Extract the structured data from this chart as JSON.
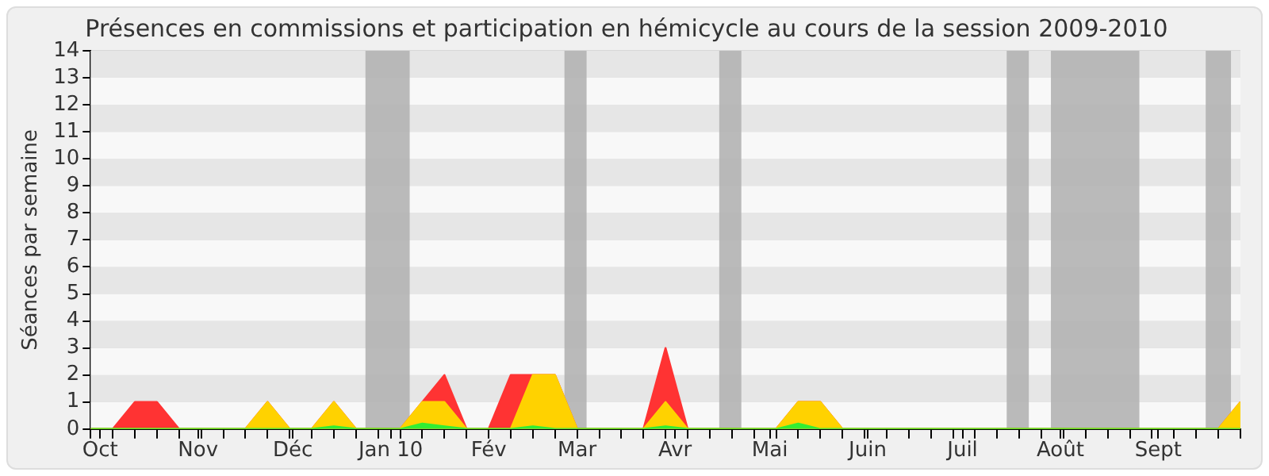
{
  "chart_data": {
    "type": "area",
    "title": "Présences en commissions et participation en hémicycle au cours de la session 2009-2010",
    "ylabel": "Séances par semaine",
    "x": [
      "2009-09-28",
      "2009-10-05",
      "2009-10-12",
      "2009-10-19",
      "2009-10-26",
      "2009-11-02",
      "2009-11-09",
      "2009-11-16",
      "2009-11-23",
      "2009-11-30",
      "2009-12-07",
      "2009-12-14",
      "2009-12-21",
      "2009-12-28",
      "2010-01-04",
      "2010-01-11",
      "2010-01-18",
      "2010-01-25",
      "2010-02-01",
      "2010-02-08",
      "2010-02-15",
      "2010-02-22",
      "2010-03-01",
      "2010-03-08",
      "2010-03-15",
      "2010-03-22",
      "2010-03-29",
      "2010-04-05",
      "2010-04-12",
      "2010-04-19",
      "2010-04-26",
      "2010-05-03",
      "2010-05-10",
      "2010-05-17",
      "2010-05-24",
      "2010-05-31",
      "2010-06-07",
      "2010-06-14",
      "2010-06-21",
      "2010-06-28",
      "2010-07-05",
      "2010-07-12",
      "2010-07-19",
      "2010-07-26",
      "2010-08-02",
      "2010-08-09",
      "2010-08-16",
      "2010-08-23",
      "2010-08-30",
      "2010-09-06",
      "2010-09-13",
      "2010-09-20",
      "2010-09-27"
    ],
    "series": [
      {
        "color": "#ff3333",
        "values": [
          0,
          0,
          1,
          1,
          0,
          0,
          0,
          0,
          1,
          0,
          0,
          1,
          0,
          0,
          0,
          1,
          2,
          0,
          0,
          2,
          2,
          2,
          0,
          0,
          0,
          0,
          3,
          0,
          0,
          0,
          0,
          0,
          1,
          1,
          0,
          0,
          0,
          0,
          0,
          0,
          0,
          0,
          0,
          0,
          0,
          0,
          0,
          0,
          0,
          0,
          0,
          0,
          1
        ]
      },
      {
        "color": "#ffd200",
        "values": [
          0,
          0,
          0,
          0,
          0,
          0,
          0,
          0,
          1,
          0,
          0,
          1,
          0,
          0,
          0,
          1,
          1,
          0,
          0,
          0,
          2,
          2,
          0,
          0,
          0,
          0,
          1,
          0,
          0,
          0,
          0,
          0,
          1,
          1,
          0,
          0,
          0,
          0,
          0,
          0,
          0,
          0,
          0,
          0,
          0,
          0,
          0,
          0,
          0,
          0,
          0,
          0,
          1
        ]
      },
      {
        "color": "#33ee33",
        "values": [
          0,
          0,
          0,
          0,
          0,
          0,
          0,
          0,
          0,
          0,
          0,
          0.1,
          0,
          0,
          0,
          0.2,
          0.1,
          0,
          0,
          0,
          0.1,
          0,
          0,
          0,
          0,
          0,
          0.1,
          0,
          0,
          0,
          0,
          0,
          0.2,
          0,
          0,
          0,
          0,
          0,
          0,
          0,
          0,
          0,
          0,
          0,
          0,
          0,
          0,
          0,
          0,
          0,
          0,
          0,
          0
        ]
      }
    ],
    "xlim": [
      "2009-09-28",
      "2010-09-27"
    ],
    "xticks": [
      {
        "value": "2009-09-28",
        "label": null
      },
      {
        "value": "2009-10-01",
        "label": "Oct"
      },
      {
        "value": "2009-10-05",
        "label": null
      },
      {
        "value": "2009-10-12",
        "label": null
      },
      {
        "value": "2009-10-19",
        "label": null
      },
      {
        "value": "2009-10-26",
        "label": null
      },
      {
        "value": "2009-11-01",
        "label": "Nov"
      },
      {
        "value": "2009-11-02",
        "label": null
      },
      {
        "value": "2009-11-09",
        "label": null
      },
      {
        "value": "2009-11-16",
        "label": null
      },
      {
        "value": "2009-11-23",
        "label": null
      },
      {
        "value": "2009-11-30",
        "label": null
      },
      {
        "value": "2009-12-01",
        "label": "Déc"
      },
      {
        "value": "2009-12-07",
        "label": null
      },
      {
        "value": "2009-12-14",
        "label": null
      },
      {
        "value": "2009-12-21",
        "label": null
      },
      {
        "value": "2009-12-28",
        "label": null
      },
      {
        "value": "2010-01-01",
        "label": "Jan 10"
      },
      {
        "value": "2010-01-04",
        "label": null
      },
      {
        "value": "2010-01-11",
        "label": null
      },
      {
        "value": "2010-01-18",
        "label": null
      },
      {
        "value": "2010-01-25",
        "label": null
      },
      {
        "value": "2010-02-01",
        "label": "Fév"
      },
      {
        "value": "2010-02-08",
        "label": null
      },
      {
        "value": "2010-02-15",
        "label": null
      },
      {
        "value": "2010-02-22",
        "label": null
      },
      {
        "value": "2010-03-01",
        "label": "Mar"
      },
      {
        "value": "2010-03-08",
        "label": null
      },
      {
        "value": "2010-03-15",
        "label": null
      },
      {
        "value": "2010-03-22",
        "label": null
      },
      {
        "value": "2010-03-29",
        "label": null
      },
      {
        "value": "2010-04-01",
        "label": "Avr"
      },
      {
        "value": "2010-04-05",
        "label": null
      },
      {
        "value": "2010-04-12",
        "label": null
      },
      {
        "value": "2010-04-19",
        "label": null
      },
      {
        "value": "2010-04-26",
        "label": null
      },
      {
        "value": "2010-05-01",
        "label": "Mai"
      },
      {
        "value": "2010-05-03",
        "label": null
      },
      {
        "value": "2010-05-10",
        "label": null
      },
      {
        "value": "2010-05-17",
        "label": null
      },
      {
        "value": "2010-05-24",
        "label": null
      },
      {
        "value": "2010-05-31",
        "label": null
      },
      {
        "value": "2010-06-01",
        "label": "Juin"
      },
      {
        "value": "2010-06-07",
        "label": null
      },
      {
        "value": "2010-06-14",
        "label": null
      },
      {
        "value": "2010-06-21",
        "label": null
      },
      {
        "value": "2010-06-28",
        "label": null
      },
      {
        "value": "2010-07-01",
        "label": "Juil"
      },
      {
        "value": "2010-07-05",
        "label": null
      },
      {
        "value": "2010-07-12",
        "label": null
      },
      {
        "value": "2010-07-19",
        "label": null
      },
      {
        "value": "2010-07-26",
        "label": null
      },
      {
        "value": "2010-08-01",
        "label": "Août"
      },
      {
        "value": "2010-08-02",
        "label": null
      },
      {
        "value": "2010-08-09",
        "label": null
      },
      {
        "value": "2010-08-16",
        "label": null
      },
      {
        "value": "2010-08-23",
        "label": null
      },
      {
        "value": "2010-08-30",
        "label": null
      },
      {
        "value": "2010-09-01",
        "label": "Sept"
      },
      {
        "value": "2010-09-06",
        "label": null
      },
      {
        "value": "2010-09-13",
        "label": null
      },
      {
        "value": "2010-09-20",
        "label": null
      },
      {
        "value": "2010-09-27",
        "label": null
      }
    ],
    "ylim": [
      0,
      14
    ],
    "yticks": [
      0,
      1,
      2,
      3,
      4,
      5,
      6,
      7,
      8,
      9,
      10,
      11,
      12,
      13,
      14
    ],
    "bands": [
      {
        "axis": "x",
        "from": "2009-12-24",
        "to": "2010-01-07",
        "color": "#b0b0b0"
      },
      {
        "axis": "x",
        "from": "2010-02-25",
        "to": "2010-03-04",
        "color": "#b0b0b0"
      },
      {
        "axis": "x",
        "from": "2010-04-15",
        "to": "2010-04-22",
        "color": "#b0b0b0"
      },
      {
        "axis": "x",
        "from": "2010-07-15",
        "to": "2010-07-22",
        "color": "#b0b0b0"
      },
      {
        "axis": "x",
        "from": "2010-07-29",
        "to": "2010-08-26",
        "color": "#b0b0b0"
      },
      {
        "axis": "x",
        "from": "2010-09-16",
        "to": "2010-09-24",
        "color": "#b0b0b0"
      }
    ],
    "grid": "y",
    "legend": false,
    "marker": "none"
  }
}
